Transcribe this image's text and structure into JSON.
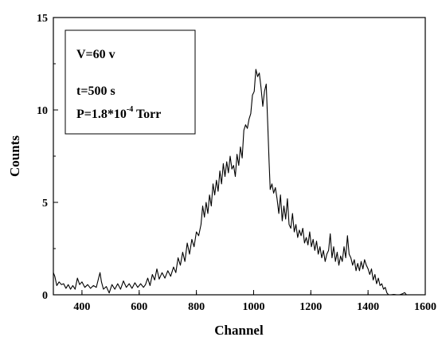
{
  "chart_data": {
    "type": "line",
    "title": "",
    "xlabel": "Channel",
    "ylabel": "Counts",
    "xlim": [
      300,
      1600
    ],
    "ylim": [
      0,
      15
    ],
    "x_ticks": [
      400,
      600,
      800,
      1000,
      1200,
      1400,
      1600
    ],
    "y_ticks": [
      0,
      5,
      10,
      15
    ],
    "grid": false,
    "legend": "none",
    "annotation": {
      "line1": "V=60 v",
      "line2": "t=500 s",
      "line3_prefix": "P=1.8*10",
      "line3_sup": "-4",
      "line3_suffix": " Torr"
    },
    "series": [
      {
        "color": "#000000",
        "points": [
          [
            300,
            1.2
          ],
          [
            305,
            1.0
          ],
          [
            312,
            0.5
          ],
          [
            320,
            0.7
          ],
          [
            328,
            0.55
          ],
          [
            336,
            0.6
          ],
          [
            344,
            0.35
          ],
          [
            352,
            0.55
          ],
          [
            360,
            0.3
          ],
          [
            368,
            0.5
          ],
          [
            376,
            0.3
          ],
          [
            384,
            0.9
          ],
          [
            392,
            0.55
          ],
          [
            400,
            0.7
          ],
          [
            410,
            0.4
          ],
          [
            420,
            0.55
          ],
          [
            430,
            0.35
          ],
          [
            440,
            0.5
          ],
          [
            450,
            0.4
          ],
          [
            458,
            0.9
          ],
          [
            463,
            1.2
          ],
          [
            468,
            0.7
          ],
          [
            475,
            0.3
          ],
          [
            485,
            0.45
          ],
          [
            495,
            0.1
          ],
          [
            505,
            0.55
          ],
          [
            515,
            0.3
          ],
          [
            525,
            0.6
          ],
          [
            535,
            0.3
          ],
          [
            545,
            0.75
          ],
          [
            555,
            0.4
          ],
          [
            565,
            0.6
          ],
          [
            575,
            0.35
          ],
          [
            585,
            0.65
          ],
          [
            595,
            0.4
          ],
          [
            605,
            0.6
          ],
          [
            615,
            0.4
          ],
          [
            622,
            0.55
          ],
          [
            630,
            0.9
          ],
          [
            638,
            0.5
          ],
          [
            646,
            1.1
          ],
          [
            654,
            0.8
          ],
          [
            662,
            1.4
          ],
          [
            670,
            0.85
          ],
          [
            680,
            1.2
          ],
          [
            690,
            0.9
          ],
          [
            700,
            1.3
          ],
          [
            710,
            1.0
          ],
          [
            720,
            1.5
          ],
          [
            728,
            1.2
          ],
          [
            736,
            2.0
          ],
          [
            744,
            1.6
          ],
          [
            752,
            2.3
          ],
          [
            760,
            1.8
          ],
          [
            768,
            2.8
          ],
          [
            776,
            2.2
          ],
          [
            784,
            3.0
          ],
          [
            792,
            2.6
          ],
          [
            800,
            3.4
          ],
          [
            808,
            3.2
          ],
          [
            816,
            3.8
          ],
          [
            822,
            4.8
          ],
          [
            828,
            4.2
          ],
          [
            834,
            5.0
          ],
          [
            840,
            4.4
          ],
          [
            846,
            5.4
          ],
          [
            852,
            4.8
          ],
          [
            858,
            6.0
          ],
          [
            864,
            5.4
          ],
          [
            870,
            6.2
          ],
          [
            876,
            5.6
          ],
          [
            882,
            6.7
          ],
          [
            888,
            6.0
          ],
          [
            894,
            7.1
          ],
          [
            900,
            6.4
          ],
          [
            906,
            7.2
          ],
          [
            912,
            6.6
          ],
          [
            918,
            7.5
          ],
          [
            924,
            6.8
          ],
          [
            930,
            7.0
          ],
          [
            936,
            6.4
          ],
          [
            942,
            7.6
          ],
          [
            948,
            7.0
          ],
          [
            954,
            8.0
          ],
          [
            960,
            7.4
          ],
          [
            966,
            8.9
          ],
          [
            972,
            9.2
          ],
          [
            978,
            9.0
          ],
          [
            984,
            9.5
          ],
          [
            990,
            9.8
          ],
          [
            996,
            10.8
          ],
          [
            1002,
            11.0
          ],
          [
            1008,
            12.2
          ],
          [
            1014,
            11.8
          ],
          [
            1020,
            12.0
          ],
          [
            1026,
            11.2
          ],
          [
            1032,
            10.2
          ],
          [
            1038,
            11.0
          ],
          [
            1044,
            11.4
          ],
          [
            1050,
            9.0
          ],
          [
            1054,
            7.2
          ],
          [
            1058,
            5.7
          ],
          [
            1064,
            6.0
          ],
          [
            1070,
            5.5
          ],
          [
            1076,
            5.8
          ],
          [
            1082,
            5.2
          ],
          [
            1088,
            4.4
          ],
          [
            1094,
            5.4
          ],
          [
            1100,
            4.0
          ],
          [
            1106,
            4.8
          ],
          [
            1112,
            4.1
          ],
          [
            1118,
            5.2
          ],
          [
            1124,
            3.8
          ],
          [
            1130,
            3.6
          ],
          [
            1136,
            4.4
          ],
          [
            1142,
            3.4
          ],
          [
            1148,
            3.8
          ],
          [
            1154,
            3.1
          ],
          [
            1160,
            3.5
          ],
          [
            1166,
            3.2
          ],
          [
            1172,
            3.6
          ],
          [
            1178,
            2.8
          ],
          [
            1184,
            3.1
          ],
          [
            1190,
            2.7
          ],
          [
            1196,
            3.4
          ],
          [
            1202,
            2.6
          ],
          [
            1208,
            3.0
          ],
          [
            1214,
            2.4
          ],
          [
            1220,
            2.9
          ],
          [
            1226,
            2.2
          ],
          [
            1232,
            2.6
          ],
          [
            1238,
            2.0
          ],
          [
            1244,
            2.4
          ],
          [
            1250,
            1.8
          ],
          [
            1256,
            2.2
          ],
          [
            1262,
            2.4
          ],
          [
            1268,
            3.3
          ],
          [
            1274,
            2.0
          ],
          [
            1280,
            2.6
          ],
          [
            1286,
            1.8
          ],
          [
            1292,
            2.3
          ],
          [
            1298,
            1.6
          ],
          [
            1304,
            2.1
          ],
          [
            1310,
            1.8
          ],
          [
            1316,
            2.6
          ],
          [
            1322,
            2.0
          ],
          [
            1328,
            3.2
          ],
          [
            1334,
            2.2
          ],
          [
            1340,
            2.0
          ],
          [
            1346,
            1.6
          ],
          [
            1352,
            1.9
          ],
          [
            1358,
            1.3
          ],
          [
            1364,
            1.7
          ],
          [
            1370,
            1.3
          ],
          [
            1376,
            1.8
          ],
          [
            1382,
            1.4
          ],
          [
            1388,
            1.9
          ],
          [
            1394,
            1.6
          ],
          [
            1400,
            1.4
          ],
          [
            1406,
            1.1
          ],
          [
            1412,
            1.4
          ],
          [
            1418,
            0.8
          ],
          [
            1424,
            1.1
          ],
          [
            1430,
            0.6
          ],
          [
            1436,
            0.9
          ],
          [
            1442,
            0.5
          ],
          [
            1448,
            0.6
          ],
          [
            1454,
            0.3
          ],
          [
            1460,
            0.4
          ],
          [
            1466,
            0.1
          ],
          [
            1472,
            0.0
          ],
          [
            1480,
            0.0
          ],
          [
            1490,
            0.02
          ],
          [
            1500,
            0.0
          ],
          [
            1510,
            0.0
          ],
          [
            1520,
            0.05
          ],
          [
            1528,
            0.12
          ],
          [
            1534,
            0.0
          ],
          [
            1545,
            0.0
          ]
        ]
      }
    ]
  }
}
